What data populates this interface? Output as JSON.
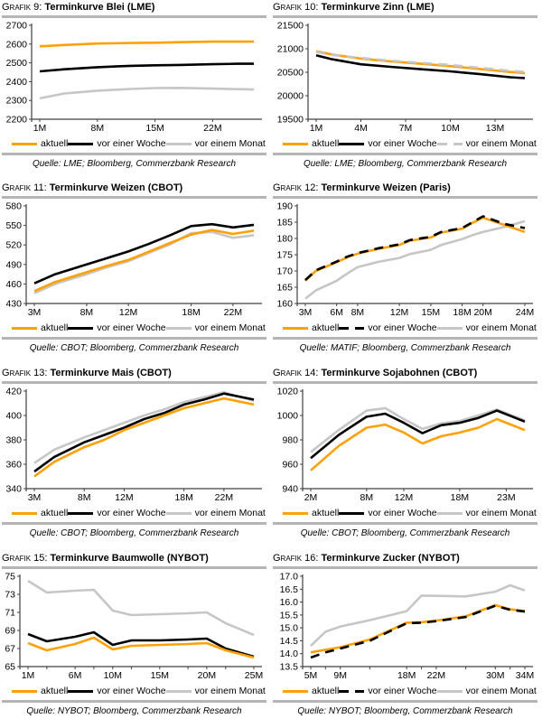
{
  "colors": {
    "aktuell": "#ffa005",
    "woche": "#000000",
    "monat": "#c6c6c6",
    "divider": "#b5b5b5",
    "axis": "#404040"
  },
  "chart_data": [
    {
      "type": "line",
      "grafik_label": "Grafik 9:",
      "title": "Terminkurve Blei (LME)",
      "source": "Quelle: LME; Bloomberg, Commerzbank Research",
      "x_months": [
        1,
        4,
        8,
        12,
        15,
        18,
        22,
        25,
        27
      ],
      "x_tick_months": [
        1,
        8,
        15,
        22
      ],
      "x_tick_labels": [
        "1M",
        "8M",
        "15M",
        "22M"
      ],
      "minor_ticks": false,
      "ylim": [
        2200,
        2700
      ],
      "ytick_labels": [
        "2200",
        "2300",
        "2400",
        "2500",
        "2600",
        "2700"
      ],
      "series": {
        "aktuell": {
          "label": "aktuell",
          "dash": false,
          "values": [
            2588,
            2595,
            2603,
            2606,
            2607,
            2610,
            2613,
            2613,
            2613
          ]
        },
        "woche": {
          "label": "vor einer Woche",
          "dash": false,
          "values": [
            2455,
            2466,
            2477,
            2484,
            2487,
            2489,
            2493,
            2495,
            2495
          ]
        },
        "monat": {
          "label": "vor einem Monat",
          "dash": false,
          "values": [
            2311,
            2337,
            2352,
            2361,
            2366,
            2367,
            2363,
            2360,
            2358
          ]
        }
      },
      "draw_order": [
        "monat",
        "woche",
        "aktuell"
      ]
    },
    {
      "type": "line",
      "grafik_label": "Grafik 10:",
      "title": "Terminkurve Zinn (LME)",
      "source": "Quelle: LME; Bloomberg, Commerzbank Research",
      "x_months": [
        1,
        2,
        4,
        6,
        8,
        10,
        12,
        14,
        15
      ],
      "x_tick_months": [
        1,
        4,
        7,
        10,
        13
      ],
      "x_tick_labels": [
        "1M",
        "4M",
        "7M",
        "10M",
        "13M"
      ],
      "minor_ticks": false,
      "ylim": [
        19500,
        21500
      ],
      "ytick_labels": [
        "19500",
        "20000",
        "20500",
        "21000",
        "21500"
      ],
      "series": {
        "aktuell": {
          "label": "aktuell",
          "dash": false,
          "values": [
            20950,
            20880,
            20790,
            20730,
            20680,
            20630,
            20570,
            20505,
            20480
          ]
        },
        "woche": {
          "label": "vor einer Woche",
          "dash": false,
          "values": [
            20860,
            20780,
            20670,
            20615,
            20565,
            20520,
            20460,
            20395,
            20375
          ]
        },
        "monat": {
          "label": "vor einem Monat",
          "dash": true,
          "values": [
            20935,
            20870,
            20805,
            20745,
            20700,
            20655,
            20595,
            20530,
            20505
          ]
        }
      },
      "draw_order": [
        "woche",
        "aktuell",
        "monat"
      ]
    },
    {
      "type": "line",
      "grafik_label": "Grafik 11:",
      "title": "Terminkurve Weizen (CBOT)",
      "source": "Quelle: CBOT; Bloomberg, Commerzbank Research",
      "x_months": [
        3,
        5,
        8,
        10,
        12,
        14,
        16,
        18,
        20,
        22,
        24
      ],
      "x_tick_months": [
        3,
        8,
        12,
        18,
        22
      ],
      "x_tick_labels": [
        "3M",
        "8M",
        "12M",
        "18M",
        "22M"
      ],
      "minor_ticks": false,
      "ylim": [
        430,
        580
      ],
      "ytick_labels": [
        "430",
        "460",
        "490",
        "520",
        "550",
        "580"
      ],
      "series": {
        "aktuell": {
          "label": "aktuell",
          "dash": false,
          "values": [
            449,
            463,
            478,
            488,
            497,
            510,
            523,
            536,
            543,
            537,
            542
          ]
        },
        "woche": {
          "label": "vor einer Woche",
          "dash": false,
          "values": [
            461,
            475,
            490,
            500,
            510,
            522,
            535,
            549,
            552,
            547,
            551
          ]
        },
        "monat": {
          "label": "vor einem Monat",
          "dash": false,
          "values": [
            446,
            460,
            475,
            486,
            495,
            508,
            521,
            538,
            540,
            531,
            535
          ]
        }
      },
      "draw_order": [
        "monat",
        "woche",
        "aktuell"
      ]
    },
    {
      "type": "line",
      "grafik_label": "Grafik 12:",
      "title": "Terminkurve Weizen (Paris)",
      "source": "Quelle: MATIF; Bloomberg, Commerzbank Research",
      "x_months": [
        3,
        4,
        6,
        7,
        8,
        10,
        12,
        13,
        15,
        16,
        18,
        19,
        20,
        22,
        24
      ],
      "x_tick_months": [
        3,
        6,
        8,
        12,
        15,
        18,
        20,
        24
      ],
      "x_tick_labels": [
        "3M",
        "6M",
        "8M",
        "12M",
        "15M",
        "18M",
        "20M",
        "24M"
      ],
      "minor_ticks": false,
      "ylim": [
        160,
        190
      ],
      "ytick_labels": [
        "160",
        "165",
        "170",
        "175",
        "180",
        "185",
        "190"
      ],
      "series": {
        "aktuell": {
          "label": "aktuell",
          "dash": false,
          "values": [
            167,
            170,
            172.7,
            174.2,
            175.3,
            176.8,
            178,
            179.3,
            180.3,
            181.8,
            183,
            184.8,
            186.4,
            184.2,
            182
          ]
        },
        "woche": {
          "label": "vor einer Woche",
          "dash": true,
          "values": [
            167.2,
            170.2,
            172.9,
            174.4,
            175.5,
            177,
            178.2,
            179.5,
            180.5,
            182,
            183.2,
            185,
            186.8,
            184.5,
            183.2
          ]
        },
        "monat": {
          "label": "vor einem Monat",
          "dash": false,
          "values": [
            161.5,
            164,
            167,
            169.2,
            171.2,
            172.8,
            174,
            175.2,
            176.5,
            178,
            179.8,
            181,
            182,
            183.5,
            185.3
          ]
        }
      },
      "draw_order": [
        "monat",
        "aktuell",
        "woche"
      ]
    },
    {
      "type": "line",
      "grafik_label": "Grafik 13:",
      "title": "Terminkurve Mais (CBOT)",
      "source": "Quelle: CBOT; Bloomberg, Commerzbank Research",
      "x_months": [
        3,
        5,
        8,
        10,
        12,
        14,
        16,
        18,
        20,
        22,
        25
      ],
      "x_tick_months": [
        3,
        8,
        12,
        18,
        22
      ],
      "x_tick_labels": [
        "3M",
        "8M",
        "12M",
        "18M",
        "22M"
      ],
      "minor_ticks": false,
      "ylim": [
        340,
        420
      ],
      "ytick_labels": [
        "340",
        "360",
        "380",
        "400",
        "420"
      ],
      "series": {
        "aktuell": {
          "label": "aktuell",
          "dash": false,
          "values": [
            350,
            362,
            374,
            380,
            388,
            394,
            400,
            406,
            410,
            414,
            409
          ]
        },
        "woche": {
          "label": "vor einer Woche",
          "dash": false,
          "values": [
            354,
            366,
            378,
            384,
            390,
            397,
            402,
            409,
            413,
            418,
            413
          ]
        },
        "monat": {
          "label": "vor einem Monat",
          "dash": false,
          "values": [
            361,
            372,
            382,
            388,
            394,
            400,
            405,
            411,
            415,
            419,
            412
          ]
        }
      },
      "draw_order": [
        "monat",
        "woche",
        "aktuell"
      ]
    },
    {
      "type": "line",
      "grafik_label": "Grafik 14:",
      "title": "Terminkurve Sojabohnen (CBOT)",
      "source": "Quelle: CBOT; Bloomberg, Commerzbank Research",
      "x_months": [
        2,
        5,
        8,
        10,
        12,
        14,
        16,
        18,
        20,
        22,
        25
      ],
      "x_tick_months": [
        2,
        8,
        12,
        18,
        23
      ],
      "x_tick_labels": [
        "2M",
        "8M",
        "12M",
        "18M",
        "23M"
      ],
      "minor_ticks": false,
      "ylim": [
        940,
        1020
      ],
      "ytick_labels": [
        "940",
        "960",
        "980",
        "1000",
        "1020"
      ],
      "series": {
        "aktuell": {
          "label": "aktuell",
          "dash": false,
          "values": [
            955,
            975,
            990,
            992.5,
            986,
            977,
            983,
            986,
            990,
            997,
            988
          ]
        },
        "woche": {
          "label": "vor einer Woche",
          "dash": false,
          "values": [
            965,
            984,
            999,
            1001.5,
            994,
            985.5,
            992,
            994,
            998,
            1004,
            995
          ]
        },
        "monat": {
          "label": "vor einem Monat",
          "dash": false,
          "values": [
            970,
            988,
            1004,
            1006,
            997,
            989,
            993.5,
            995.5,
            1000,
            1005,
            996
          ]
        }
      },
      "draw_order": [
        "monat",
        "woche",
        "aktuell"
      ]
    },
    {
      "type": "line",
      "grafik_label": "Grafik 15:",
      "title": "Terminkurve Baumwolle (NYBOT)",
      "source": "Quelle: NYBOT; Bloomberg, Commerzbank Research",
      "x_months": [
        1,
        3,
        6,
        8,
        10,
        12,
        15,
        18,
        20,
        22,
        25
      ],
      "x_tick_months": [
        1,
        6,
        10,
        15,
        20,
        25
      ],
      "x_tick_labels": [
        "1M",
        "6M",
        "10M",
        "15M",
        "20M",
        "25M"
      ],
      "minor_ticks": true,
      "ylim": [
        65,
        75
      ],
      "ytick_labels": [
        "65",
        "67",
        "69",
        "71",
        "73",
        "75"
      ],
      "series": {
        "aktuell": {
          "label": "aktuell",
          "dash": false,
          "values": [
            67.6,
            66.8,
            67.5,
            68.2,
            66.9,
            67.3,
            67.4,
            67.5,
            67.6,
            66.8,
            66.0
          ]
        },
        "woche": {
          "label": "vor einer Woche",
          "dash": false,
          "values": [
            68.6,
            67.8,
            68.3,
            68.8,
            67.4,
            67.9,
            67.9,
            68.0,
            68.1,
            67.0,
            66.1
          ]
        },
        "monat": {
          "label": "vor einem Monat",
          "dash": false,
          "values": [
            74.5,
            73.2,
            73.4,
            73.5,
            71.2,
            70.7,
            70.8,
            70.9,
            71.0,
            69.8,
            68.5
          ]
        }
      },
      "draw_order": [
        "monat",
        "woche",
        "aktuell"
      ]
    },
    {
      "type": "line",
      "grafik_label": "Grafik 16:",
      "title": "Terminkurve Zucker (NYBOT)",
      "source": "Quelle: NYBOT; Bloomberg, Commerzbank Research",
      "x_months": [
        5,
        7,
        9,
        13,
        18,
        20,
        22,
        26,
        30,
        32,
        34
      ],
      "x_tick_months": [
        5,
        9,
        18,
        22,
        30,
        34
      ],
      "x_tick_labels": [
        "5M",
        "9M",
        "18M",
        "22M",
        "30M",
        "34M"
      ],
      "minor_ticks": true,
      "ylim": [
        13.5,
        17.0
      ],
      "ytick_labels": [
        "13.5",
        "14.0",
        "14.5",
        "15.0",
        "15.5",
        "16.0",
        "16.5",
        "17.0"
      ],
      "series": {
        "aktuell": {
          "label": "aktuell",
          "dash": false,
          "values": [
            14.05,
            14.15,
            14.25,
            14.55,
            15.2,
            15.22,
            15.28,
            15.45,
            15.88,
            15.72,
            15.65
          ]
        },
        "woche": {
          "label": "vor einer Woche",
          "dash": true,
          "values": [
            13.85,
            14.05,
            14.2,
            14.5,
            15.18,
            15.2,
            15.26,
            15.42,
            15.86,
            15.7,
            15.63
          ]
        },
        "monat": {
          "label": "vor einem Monat",
          "dash": false,
          "values": [
            14.3,
            14.85,
            15.05,
            15.3,
            15.65,
            16.25,
            16.24,
            16.22,
            16.4,
            16.65,
            16.45
          ]
        }
      },
      "draw_order": [
        "monat",
        "aktuell",
        "woche"
      ]
    }
  ]
}
